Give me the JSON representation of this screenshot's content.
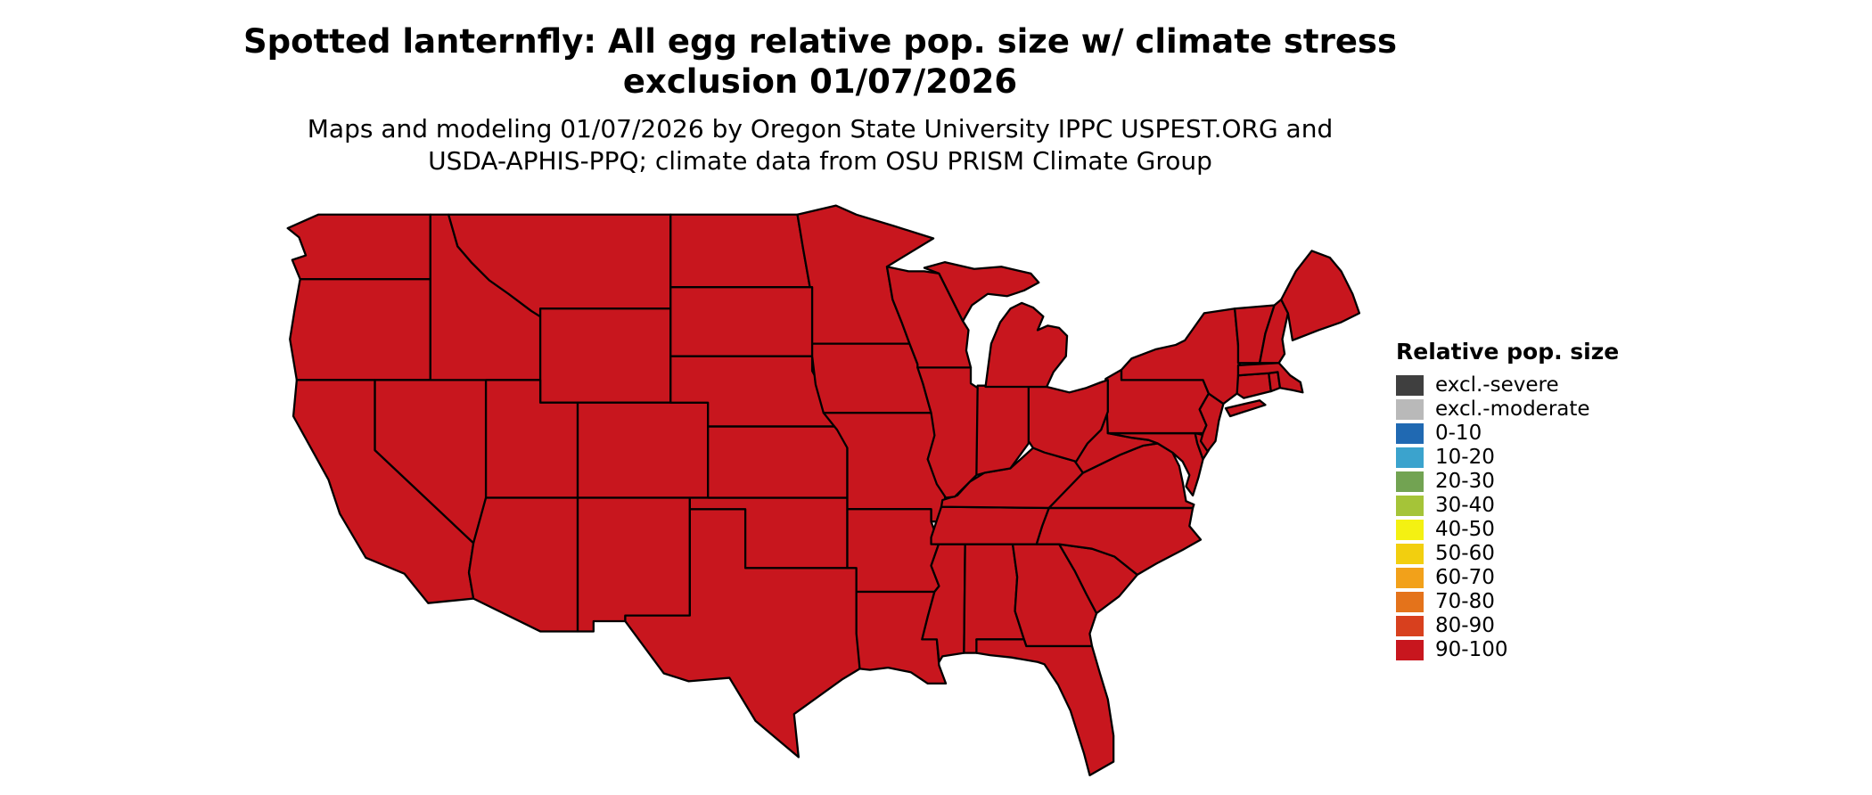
{
  "title": {
    "line1": "Spotted lanternfly: All egg relative pop. size w/ climate stress",
    "line2": "exclusion 01/07/2026"
  },
  "subtitle": {
    "line1": "Maps and modeling 01/07/2026 by Oregon State University IPPC USPEST.ORG and",
    "line2": "USDA-APHIS-PPQ; climate data from OSU PRISM Climate Group"
  },
  "legend": {
    "title": "Relative pop. size",
    "items": [
      {
        "label": "excl.-severe",
        "color": "#3f3f3f"
      },
      {
        "label": "excl.-moderate",
        "color": "#b9b9b9"
      },
      {
        "label": "0-10",
        "color": "#2069b2"
      },
      {
        "label": "10-20",
        "color": "#3ba3cd"
      },
      {
        "label": "20-30",
        "color": "#72a352"
      },
      {
        "label": "30-40",
        "color": "#a5c438"
      },
      {
        "label": "40-50",
        "color": "#f4f112"
      },
      {
        "label": "50-60",
        "color": "#f2cf0f"
      },
      {
        "label": "60-70",
        "color": "#f2a11a"
      },
      {
        "label": "70-80",
        "color": "#e4731b"
      },
      {
        "label": "80-90",
        "color": "#d8401e"
      },
      {
        "label": "90-100",
        "color": "#c8161e"
      }
    ]
  },
  "map": {
    "region": "Contiguous United States",
    "uniform_category": "90-100",
    "fill": "#c8161e",
    "stroke": "#000000"
  }
}
